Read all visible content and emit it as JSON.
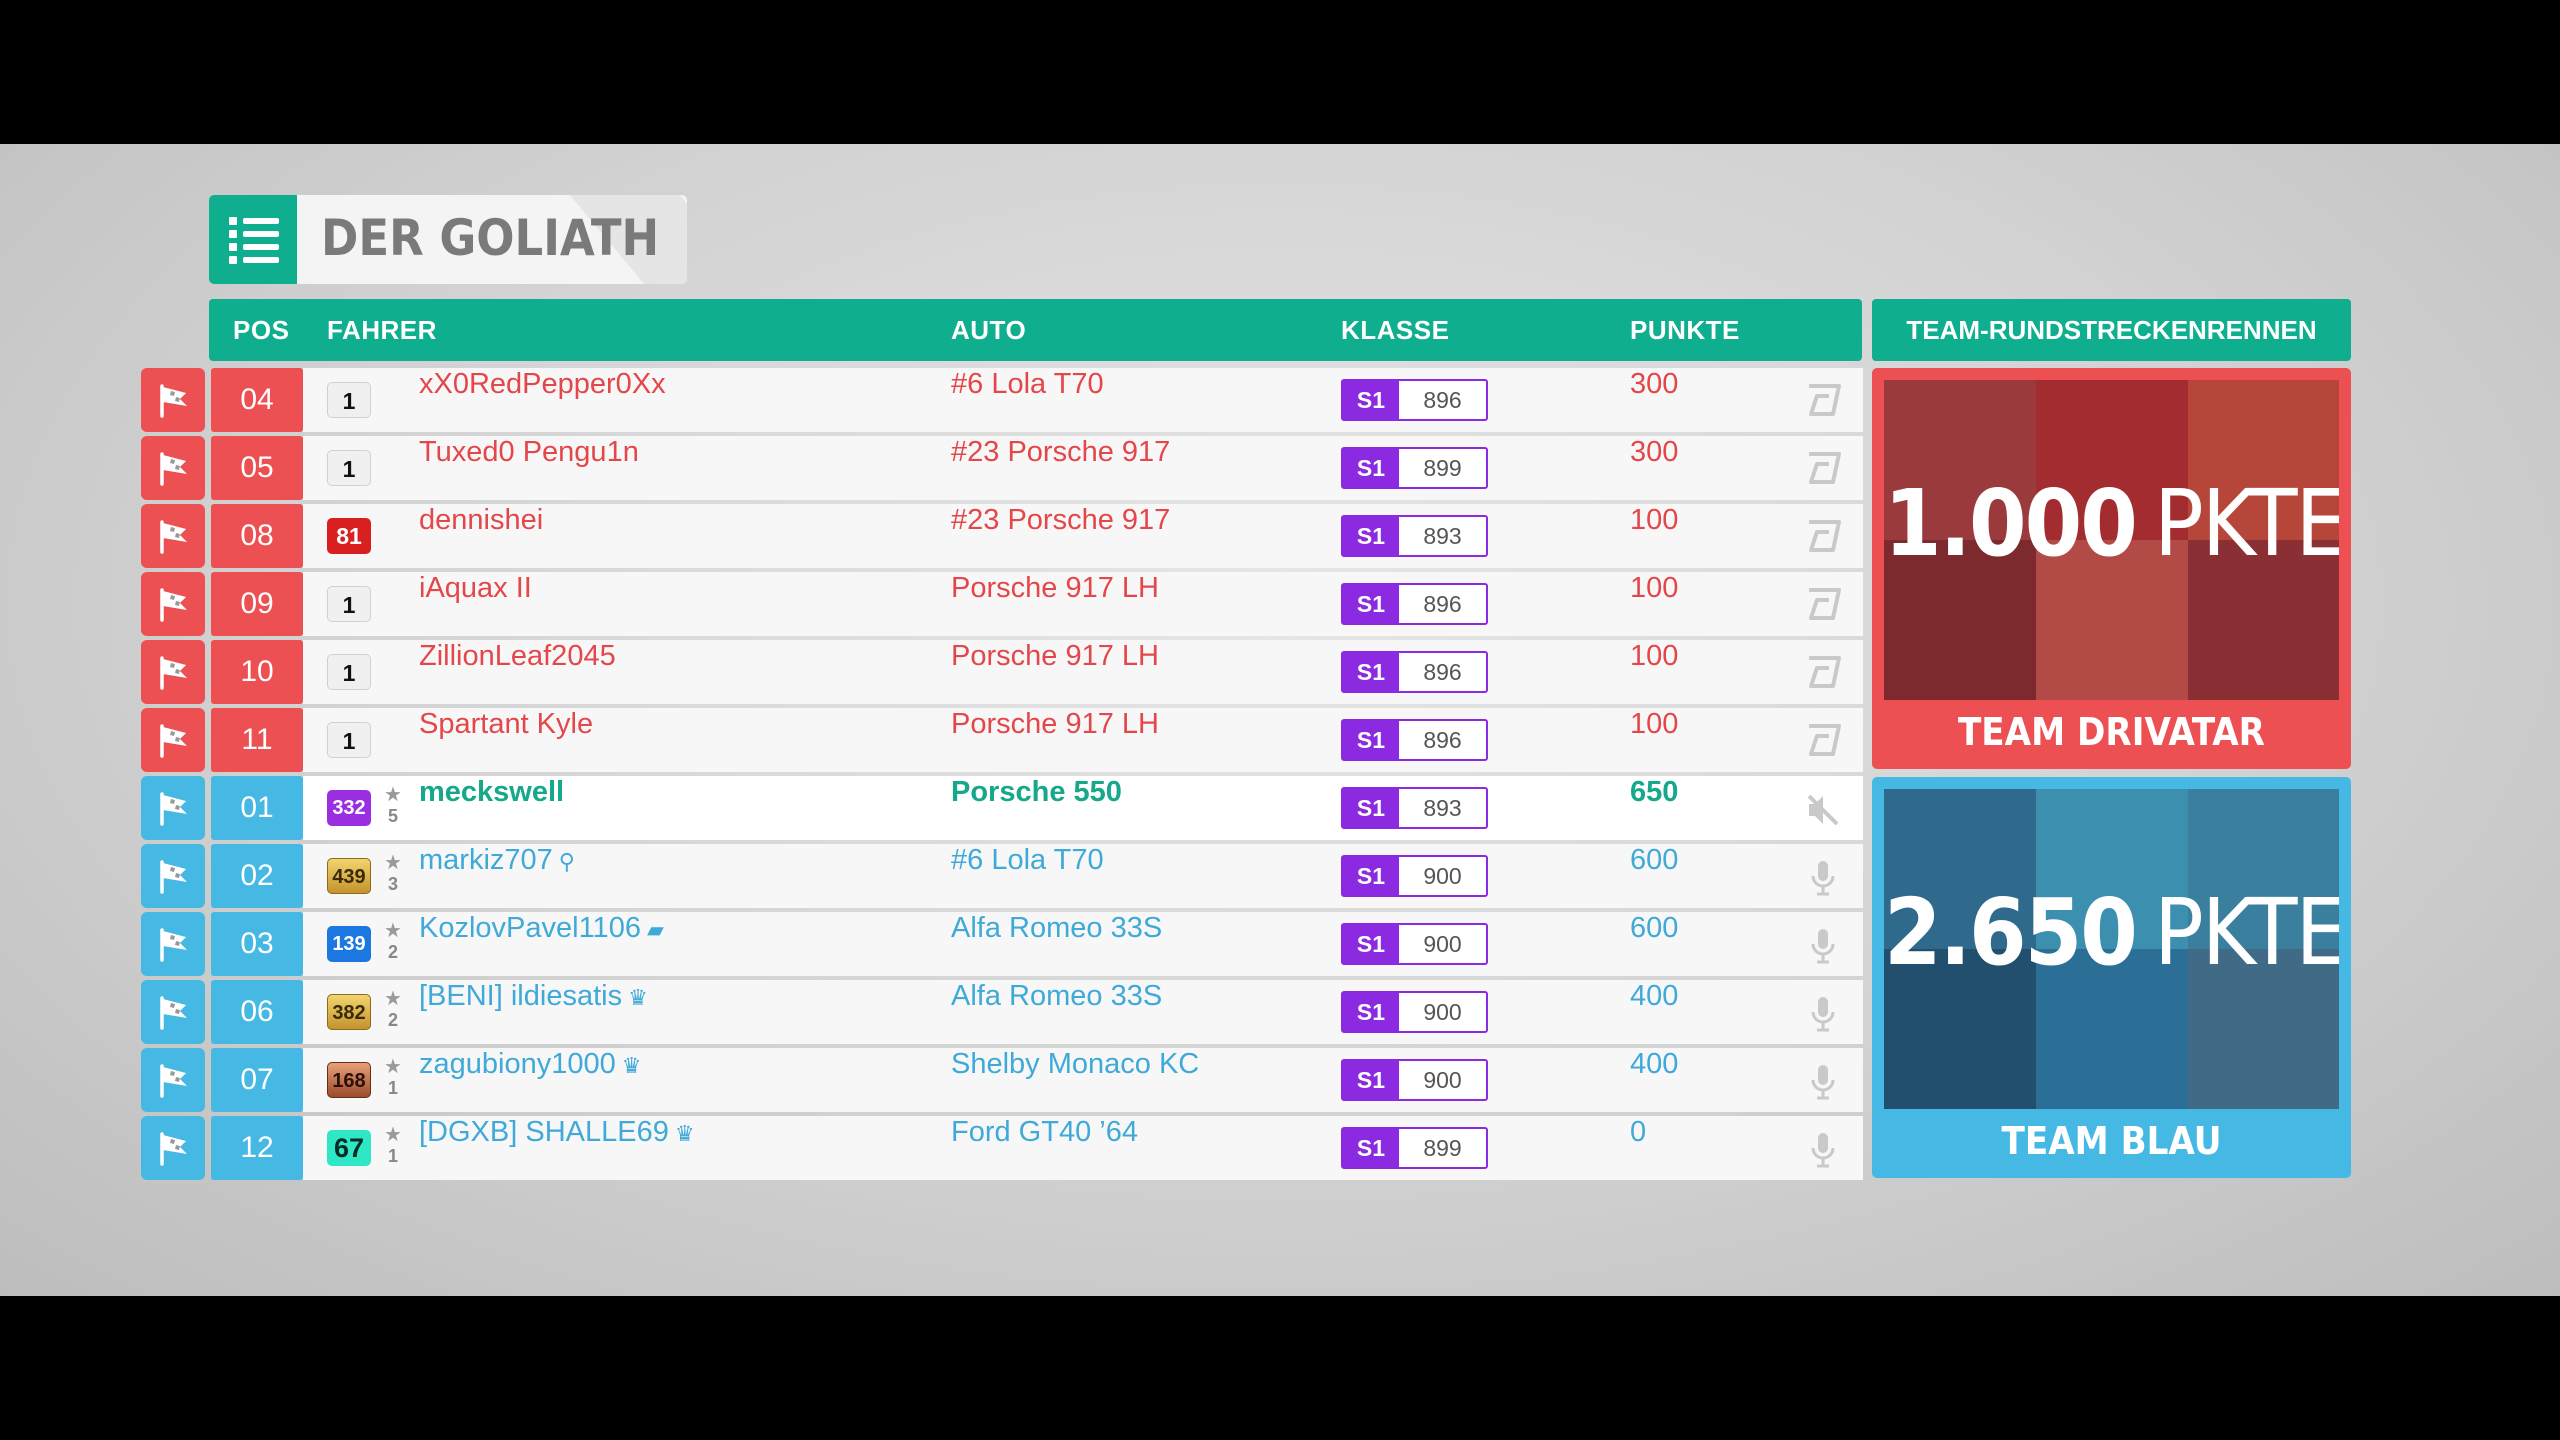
{
  "event": {
    "title": "DER GOLIATH",
    "list_icon": "list-icon"
  },
  "columns": {
    "pos": "POS",
    "driver": "FAHRER",
    "car": "AUTO",
    "class": "KLASSE",
    "points": "PUNKTE"
  },
  "team_panel_title": "TEAM-RUNDSTRECKENRENNEN",
  "colors": {
    "accent": "#0fae8e",
    "team_red": "#ec5052",
    "team_blue": "#45b8e4",
    "class_purple": "#8b2ae0"
  },
  "rows": [
    {
      "team": "red",
      "pos": "04",
      "level": "1",
      "level_style": "plain",
      "stars": "",
      "driver": "xX0RedPepper0Xx",
      "badge": "",
      "car": "#6 Lola T70",
      "class": "S1",
      "pi": "896",
      "points": "300",
      "icon": "drivatar-icon"
    },
    {
      "team": "red",
      "pos": "05",
      "level": "1",
      "level_style": "plain",
      "stars": "",
      "driver": "Tuxed0 Pengu1n",
      "badge": "",
      "car": "#23 Porsche 917",
      "class": "S1",
      "pi": "899",
      "points": "300",
      "icon": "drivatar-icon"
    },
    {
      "team": "red",
      "pos": "08",
      "level": "81",
      "level_style": "red",
      "stars": "",
      "driver": "dennishei",
      "badge": "",
      "car": "#23 Porsche 917",
      "class": "S1",
      "pi": "893",
      "points": "100",
      "icon": "drivatar-icon"
    },
    {
      "team": "red",
      "pos": "09",
      "level": "1",
      "level_style": "plain",
      "stars": "",
      "driver": "iAquax II",
      "badge": "",
      "car": "Porsche 917 LH",
      "class": "S1",
      "pi": "896",
      "points": "100",
      "icon": "drivatar-icon"
    },
    {
      "team": "red",
      "pos": "10",
      "level": "1",
      "level_style": "plain",
      "stars": "",
      "driver": "ZillionLeaf2045",
      "badge": "",
      "car": "Porsche 917 LH",
      "class": "S1",
      "pi": "896",
      "points": "100",
      "icon": "drivatar-icon"
    },
    {
      "team": "red",
      "pos": "11",
      "level": "1",
      "level_style": "plain",
      "stars": "",
      "driver": "Spartant Kyle",
      "badge": "",
      "car": "Porsche 917 LH",
      "class": "S1",
      "pi": "896",
      "points": "100",
      "icon": "drivatar-icon"
    },
    {
      "team": "me",
      "pos": "01",
      "level": "332",
      "level_style": "purple",
      "stars": "5",
      "driver": "meckswell",
      "badge": "",
      "car": "Porsche 550",
      "class": "S1",
      "pi": "893",
      "points": "650",
      "icon": "mic-muted-icon"
    },
    {
      "team": "blue",
      "pos": "02",
      "level": "439",
      "level_style": "gold",
      "stars": "3",
      "driver": "markiz707",
      "badge": "key-icon",
      "car": "#6 Lola T70",
      "class": "S1",
      "pi": "900",
      "points": "600",
      "icon": "mic-icon"
    },
    {
      "team": "blue",
      "pos": "03",
      "level": "139",
      "level_style": "blue",
      "stars": "2",
      "driver": "KozlovPavel1106",
      "badge": "book-icon",
      "car": "Alfa Romeo 33S",
      "class": "S1",
      "pi": "900",
      "points": "600",
      "icon": "mic-icon"
    },
    {
      "team": "blue",
      "pos": "06",
      "level": "382",
      "level_style": "gold",
      "stars": "2",
      "driver": "[BENI] ildiesatis",
      "badge": "crown-icon",
      "car": "Alfa Romeo 33S",
      "class": "S1",
      "pi": "900",
      "points": "400",
      "icon": "mic-icon"
    },
    {
      "team": "blue",
      "pos": "07",
      "level": "168",
      "level_style": "bronze",
      "stars": "1",
      "driver": "zagubiony1000",
      "badge": "crown-icon",
      "car": "Shelby Monaco KC",
      "class": "S1",
      "pi": "900",
      "points": "400",
      "icon": "mic-icon"
    },
    {
      "team": "blue",
      "pos": "12",
      "level": "67",
      "level_style": "teal",
      "stars": "1",
      "driver": "[DGXB] SHALLE69",
      "badge": "crown-icon",
      "car": "Ford GT40 ’64",
      "class": "S1",
      "pi": "899",
      "points": "0",
      "icon": "mic-icon"
    }
  ],
  "teams": [
    {
      "name": "TEAM DRIVATAR",
      "score": "1.000",
      "unit": "PKTE",
      "color": "#ec5052"
    },
    {
      "name": "TEAM BLAU",
      "score": "2.650",
      "unit": "PKTE",
      "color": "#45b8e4"
    }
  ]
}
